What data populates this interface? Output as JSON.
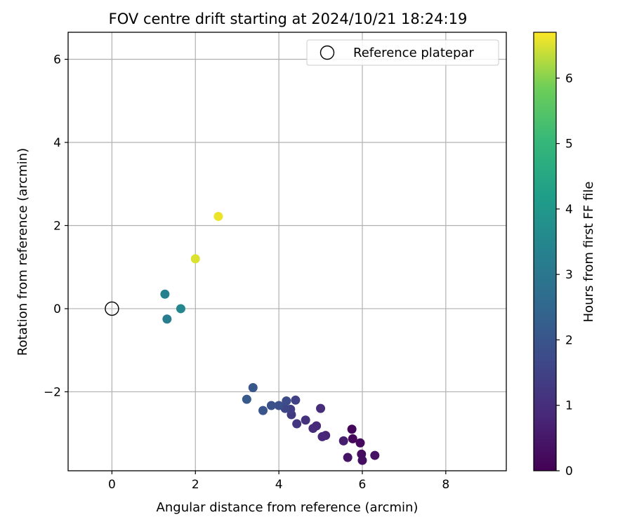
{
  "chart_data": {
    "type": "scatter",
    "title": "FOV centre drift starting at 2024/10/21 18:24:19",
    "xlabel": "Angular distance from reference (arcmin)",
    "ylabel": "Rotation from reference (arcmin)",
    "xlim": [
      -1.05,
      9.45
    ],
    "ylim": [
      -3.9,
      6.65
    ],
    "xticks": [
      0,
      2,
      4,
      6,
      8
    ],
    "yticks": [
      -2,
      0,
      2,
      4,
      6
    ],
    "xtick_labels": [
      "0",
      "2",
      "4",
      "6",
      "8"
    ],
    "ytick_labels": [
      "−2",
      "0",
      "2",
      "4",
      "6"
    ],
    "grid": true,
    "legend": {
      "placement": "top-right",
      "entries": [
        {
          "label": "Reference platepar",
          "marker": "hollow-circle",
          "color": "#000000"
        }
      ]
    },
    "reference_point": {
      "x": 0,
      "y": 0
    },
    "colorbar": {
      "label": "Hours from first FF file",
      "colormap": "viridis",
      "range": [
        0,
        6.7
      ],
      "ticks": [
        0,
        1,
        2,
        3,
        4,
        5,
        6
      ],
      "tick_labels": [
        "0",
        "1",
        "2",
        "3",
        "4",
        "5",
        "6"
      ]
    },
    "points": [
      {
        "x": 5.75,
        "y": -2.9,
        "hours": 0.1
      },
      {
        "x": 5.77,
        "y": -3.13,
        "hours": 0.15
      },
      {
        "x": 5.95,
        "y": -3.23,
        "hours": 0.2
      },
      {
        "x": 5.98,
        "y": -3.5,
        "hours": 0.25
      },
      {
        "x": 6.0,
        "y": -3.65,
        "hours": 0.3
      },
      {
        "x": 6.3,
        "y": -3.53,
        "hours": 0.35
      },
      {
        "x": 5.65,
        "y": -3.58,
        "hours": 0.4
      },
      {
        "x": 5.55,
        "y": -3.18,
        "hours": 0.6
      },
      {
        "x": 5.12,
        "y": -3.05,
        "hours": 0.8
      },
      {
        "x": 5.04,
        "y": -3.08,
        "hours": 0.85
      },
      {
        "x": 4.9,
        "y": -2.82,
        "hours": 0.9
      },
      {
        "x": 4.82,
        "y": -2.88,
        "hours": 0.95
      },
      {
        "x": 5.0,
        "y": -2.4,
        "hours": 1.0
      },
      {
        "x": 4.64,
        "y": -2.68,
        "hours": 1.1
      },
      {
        "x": 4.43,
        "y": -2.77,
        "hours": 1.2
      },
      {
        "x": 4.3,
        "y": -2.55,
        "hours": 1.3
      },
      {
        "x": 4.28,
        "y": -2.42,
        "hours": 1.4
      },
      {
        "x": 4.4,
        "y": -2.2,
        "hours": 1.5
      },
      {
        "x": 4.15,
        "y": -2.4,
        "hours": 1.6
      },
      {
        "x": 4.18,
        "y": -2.22,
        "hours": 1.75
      },
      {
        "x": 4.0,
        "y": -2.33,
        "hours": 1.85
      },
      {
        "x": 3.82,
        "y": -2.33,
        "hours": 1.9
      },
      {
        "x": 3.62,
        "y": -2.45,
        "hours": 2.0
      },
      {
        "x": 3.38,
        "y": -1.9,
        "hours": 2.05
      },
      {
        "x": 3.23,
        "y": -2.18,
        "hours": 2.1
      },
      {
        "x": 1.32,
        "y": -0.25,
        "hours": 3.2
      },
      {
        "x": 1.27,
        "y": 0.35,
        "hours": 3.3
      },
      {
        "x": 1.65,
        "y": 0.0,
        "hours": 3.5
      },
      {
        "x": 2.0,
        "y": 1.2,
        "hours": 6.5
      },
      {
        "x": 2.55,
        "y": 2.22,
        "hours": 6.6
      }
    ]
  }
}
